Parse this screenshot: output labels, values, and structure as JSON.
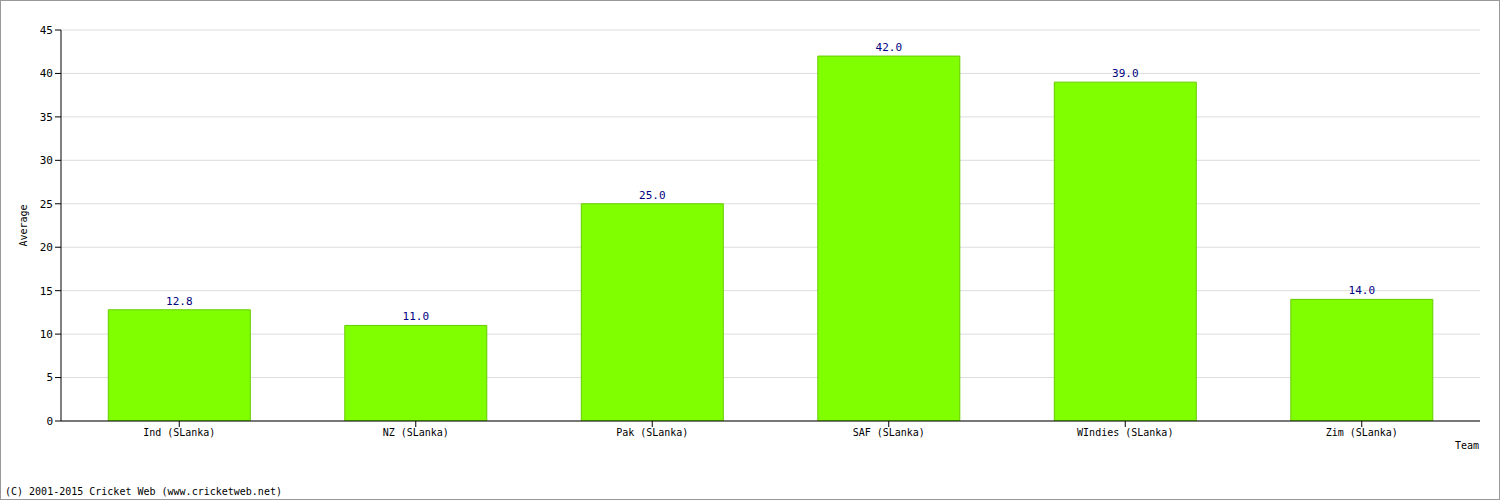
{
  "chart_data": {
    "type": "bar",
    "categories": [
      "Ind (SLanka)",
      "NZ (SLanka)",
      "Pak (SLanka)",
      "SAF (SLanka)",
      "WIndies (SLanka)",
      "Zim (SLanka)"
    ],
    "values": [
      12.8,
      11.0,
      25.0,
      42.0,
      39.0,
      14.0
    ],
    "value_labels": [
      "12.8",
      "11.0",
      "25.0",
      "42.0",
      "39.0",
      "14.0"
    ],
    "color": "#80ff00",
    "x_label": "Team",
    "y_label": "Average",
    "annotations": [
      "(C) 2001-2015 Cricket Web (www.cricketweb.net)"
    ],
    "ylim": [
      0,
      45
    ],
    "yticks": [
      0,
      5,
      10,
      15,
      20,
      25,
      30,
      35,
      40,
      45
    ],
    "grid": true,
    "data_labels": true
  }
}
